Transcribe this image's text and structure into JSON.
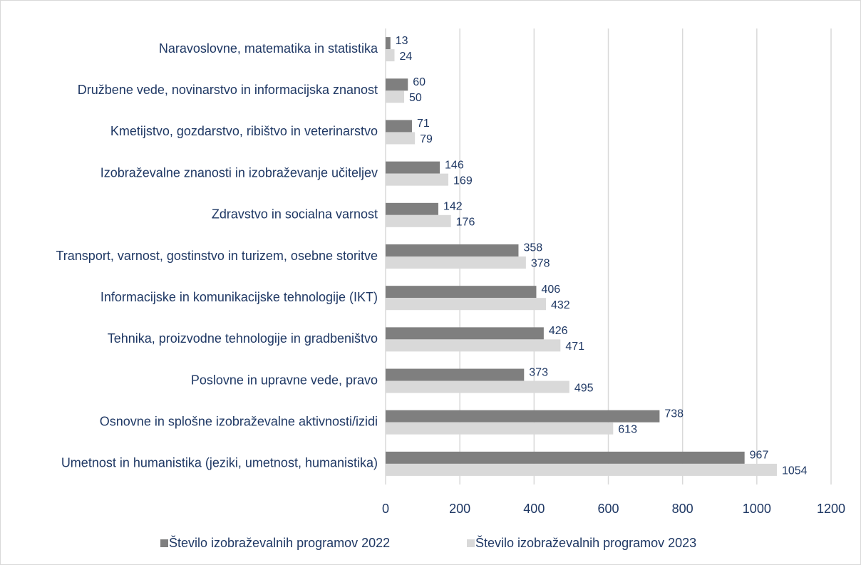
{
  "chart_data": {
    "type": "bar",
    "orientation": "horizontal",
    "grid": true,
    "categories": [
      "Naravoslovne, matematika in statistika",
      "Družbene vede, novinarstvo in informacijska znanost",
      "Kmetijstvo, gozdarstvo, ribištvo in veterinarstvo",
      "Izobraževalne znanosti in izobraževanje učiteljev",
      "Zdravstvo in socialna varnost",
      "Transport, varnost, gostinstvo in turizem, osebne storitve",
      "Informacijske in komunikacijske tehnologije (IKT)",
      "Tehnika, proizvodne tehnologije in gradbeništvo",
      "Poslovne in upravne vede, pravo",
      "Osnovne in splošne izobraževalne aktivnosti/izidi",
      "Umetnost in humanistika (jeziki, umetnost, humanistika)"
    ],
    "series": [
      {
        "name": "Število izobraževalnih programov 2022",
        "color": "#7f7f7f",
        "values": [
          13,
          60,
          71,
          146,
          142,
          358,
          406,
          426,
          373,
          738,
          967
        ]
      },
      {
        "name": "Število izobraževalnih programov 2023",
        "color": "#d9d9d9",
        "values": [
          24,
          50,
          79,
          169,
          176,
          378,
          432,
          471,
          495,
          613,
          1054
        ]
      }
    ],
    "xlim": [
      0,
      1200
    ],
    "xticks": [
      0,
      200,
      400,
      600,
      800,
      1000,
      1200
    ]
  }
}
